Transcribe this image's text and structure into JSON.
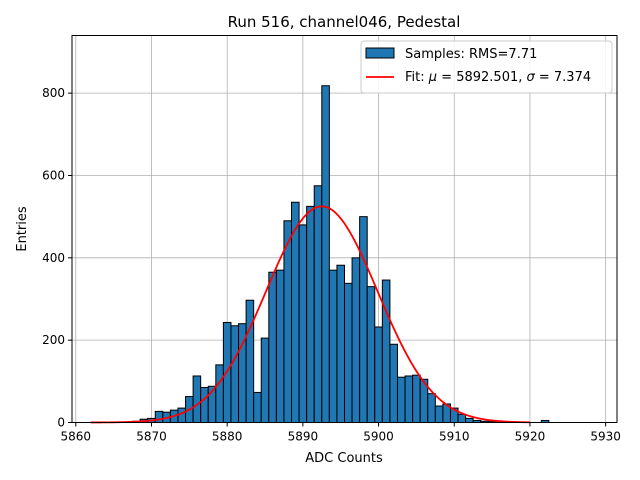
{
  "chart_data": {
    "type": "bar",
    "title": "Run 516, channel046, Pedestal",
    "xlabel": "ADC Counts",
    "ylabel": "Entries",
    "xlim": [
      5859.5,
      5931.5
    ],
    "ylim": [
      0,
      940
    ],
    "xticks": [
      5860,
      5870,
      5880,
      5890,
      5900,
      5910,
      5920,
      5930
    ],
    "yticks": [
      0,
      200,
      400,
      600,
      800
    ],
    "grid": true,
    "legend_position": "top-right",
    "legend": {
      "bars": "Samples: RMS=7.71",
      "fit_prefix": "Fit: ",
      "mu_symbol": "μ",
      "mu_text": " = 5892.501, ",
      "sigma_symbol": "σ",
      "sigma_text": " = 7.374"
    },
    "colors": {
      "bars": "#1f77b4",
      "bar_edge": "#000000",
      "fit": "#ff0000"
    },
    "bin_width": 1,
    "bin_centers": [
      5862,
      5863,
      5864,
      5865,
      5866,
      5867,
      5868,
      5869,
      5870,
      5871,
      5872,
      5873,
      5874,
      5875,
      5876,
      5877,
      5878,
      5879,
      5880,
      5881,
      5882,
      5883,
      5884,
      5885,
      5886,
      5887,
      5888,
      5889,
      5890,
      5891,
      5892,
      5893,
      5894,
      5895,
      5896,
      5897,
      5898,
      5899,
      5900,
      5901,
      5902,
      5903,
      5904,
      5905,
      5906,
      5907,
      5908,
      5909,
      5910,
      5911,
      5912,
      5913,
      5914,
      5915,
      5916,
      5917,
      5918,
      5919,
      5920,
      5921,
      5922
    ],
    "counts": [
      0,
      0,
      0,
      0,
      0,
      0,
      3,
      8,
      10,
      27,
      25,
      30,
      35,
      63,
      113,
      85,
      88,
      140,
      243,
      235,
      240,
      297,
      73,
      205,
      365,
      370,
      490,
      535,
      480,
      525,
      575,
      818,
      370,
      382,
      338,
      400,
      500,
      330,
      232,
      346,
      190,
      110,
      113,
      115,
      105,
      70,
      40,
      45,
      35,
      20,
      10,
      5,
      3,
      2,
      1,
      1,
      0,
      0,
      0,
      0,
      5
    ],
    "fit": {
      "mu": 5892.501,
      "sigma": 7.374,
      "amplitude": 525,
      "x_range": [
        5862,
        5920
      ]
    }
  }
}
